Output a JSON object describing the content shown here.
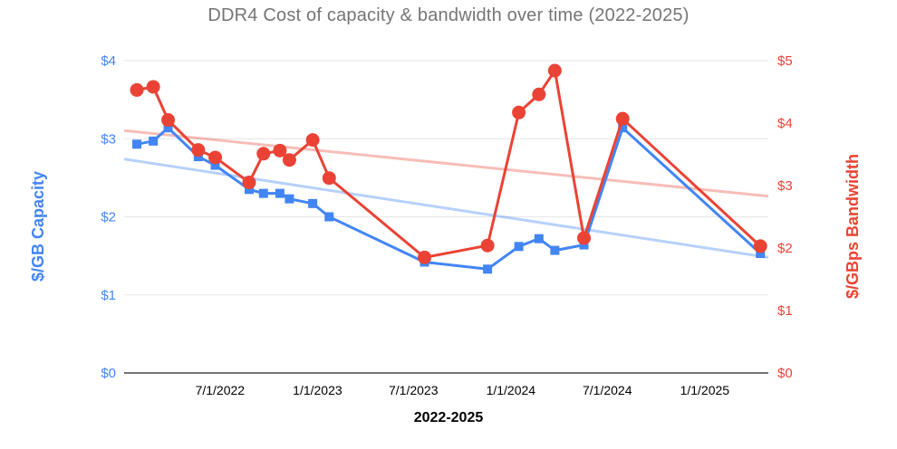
{
  "chart_data": {
    "type": "line",
    "title": "DDR4 Cost of capacity & bandwidth over time (2022-2025)",
    "title_color": "#757575",
    "grid": "horizontal-only",
    "legend": "none (dual colored axis titles identify series)",
    "x_axis": {
      "title": "2022-2025",
      "range": [
        "2022-01-01",
        "2025-05-01"
      ],
      "ticks": [
        {
          "label": "7/1/2022",
          "date": "2022-07-01"
        },
        {
          "label": "1/1/2023",
          "date": "2023-01-01"
        },
        {
          "label": "7/1/2023",
          "date": "2023-07-01"
        },
        {
          "label": "1/1/2024",
          "date": "2024-01-01"
        },
        {
          "label": "7/1/2024",
          "date": "2024-07-01"
        },
        {
          "label": "1/1/2025",
          "date": "2025-01-01"
        }
      ],
      "tick_color": "#000000"
    },
    "y_left": {
      "title": "$/GB Capacity",
      "color": "#4285F4",
      "min": 0,
      "max": 4,
      "ticks": [
        {
          "label": "$0",
          "value": 0
        },
        {
          "label": "$1",
          "value": 1
        },
        {
          "label": "$2",
          "value": 2
        },
        {
          "label": "$3",
          "value": 3
        },
        {
          "label": "$4",
          "value": 4
        }
      ]
    },
    "y_right": {
      "title": "$/GBps Bandwidth",
      "color": "#EA4335",
      "min": 0,
      "max": 5,
      "ticks": [
        {
          "label": "$0",
          "value": 0
        },
        {
          "label": "$1",
          "value": 1
        },
        {
          "label": "$2",
          "value": 2
        },
        {
          "label": "$3",
          "value": 3
        },
        {
          "label": "$4",
          "value": 4
        },
        {
          "label": "$5",
          "value": 5
        }
      ]
    },
    "dates": [
      "2022-01-25",
      "2022-02-25",
      "2022-03-25",
      "2022-05-21",
      "2022-06-22",
      "2022-08-25",
      "2022-09-21",
      "2022-10-22",
      "2022-11-09",
      "2022-12-23",
      "2023-01-23",
      "2023-07-22",
      "2023-11-18",
      "2024-01-16",
      "2024-02-23",
      "2024-03-24",
      "2024-05-18",
      "2024-07-30",
      "2025-04-16"
    ],
    "series": [
      {
        "id": "capacity",
        "name": "$/GB Capacity",
        "axis": "left",
        "color": "#4285F4",
        "marker": "square",
        "values": [
          2.93,
          2.97,
          3.14,
          2.77,
          2.66,
          2.35,
          2.3,
          2.3,
          2.23,
          2.17,
          2.0,
          1.42,
          1.33,
          1.62,
          1.72,
          1.57,
          1.64,
          3.14,
          1.53
        ]
      },
      {
        "id": "bandwidth",
        "name": "$/GBps Bandwidth",
        "axis": "right",
        "color": "#EA4335",
        "marker": "circle",
        "values": [
          4.53,
          4.58,
          4.05,
          3.57,
          3.45,
          3.05,
          3.51,
          3.56,
          3.41,
          3.73,
          3.12,
          1.85,
          2.04,
          4.17,
          4.46,
          4.84,
          2.16,
          4.07,
          2.03
        ]
      }
    ],
    "trendlines": [
      {
        "id": "capacity-trend",
        "series": "capacity",
        "axis": "left",
        "color": "rgba(66,133,244,0.38)",
        "start_value": 2.74,
        "end_value": 1.48
      },
      {
        "id": "bandwidth-trend",
        "series": "bandwidth",
        "axis": "right",
        "color": "rgba(234,67,53,0.35)",
        "start_value": 3.88,
        "end_value": 2.83
      }
    ],
    "colors": {
      "gridline": "#e6e6e6",
      "baseline": "#757575"
    }
  }
}
